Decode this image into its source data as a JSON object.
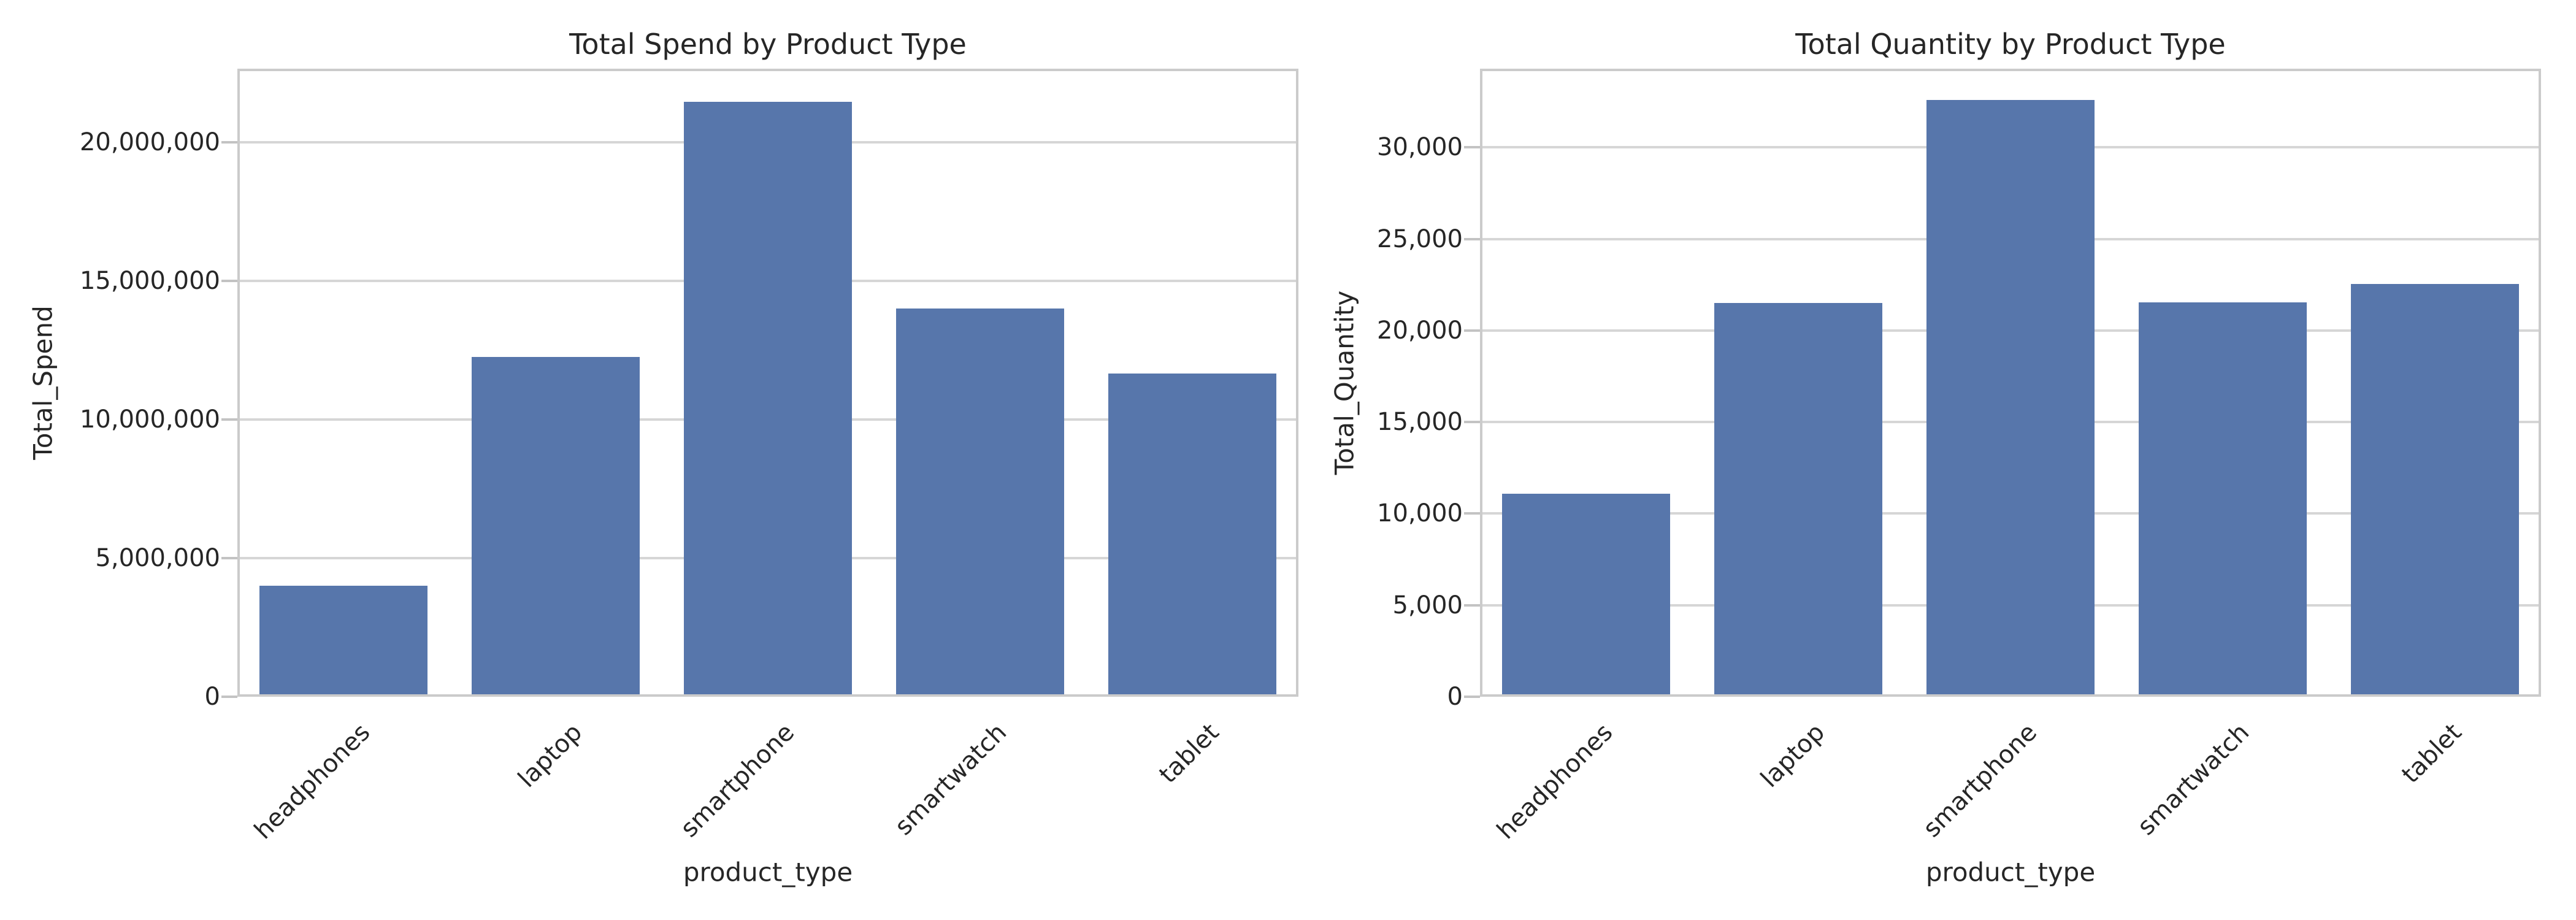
{
  "figure": {
    "background": "#ffffff"
  },
  "colors": {
    "bar": "#5776AB",
    "grid": "#d6d6d6",
    "spine": "#cbcbcb",
    "tick_mark": "#c3c3c3",
    "text": "#262626"
  },
  "chart_data": [
    {
      "type": "bar",
      "title": "Total Spend by Product Type",
      "xlabel": "product_type",
      "ylabel": "Total_Spend",
      "categories": [
        "headphones",
        "laptop",
        "smartphone",
        "smartwatch",
        "tablet"
      ],
      "values": [
        4000000,
        12250000,
        21450000,
        14000000,
        11650000
      ],
      "ylim": [
        0,
        22650000
      ],
      "yticks": [
        0,
        5000000,
        10000000,
        15000000,
        20000000
      ],
      "ytick_labels": [
        "0",
        "5,000,000",
        "10,000,000",
        "15,000,000",
        "20,000,000"
      ],
      "grid": true,
      "legend_position": "none"
    },
    {
      "type": "bar",
      "title": "Total Quantity by Product Type",
      "xlabel": "product_type",
      "ylabel": "Total_Quantity",
      "categories": [
        "headphones",
        "laptop",
        "smartphone",
        "smartwatch",
        "tablet"
      ],
      "values": [
        11100,
        21500,
        32600,
        21550,
        22550
      ],
      "ylim": [
        0,
        34300
      ],
      "yticks": [
        0,
        5000,
        10000,
        15000,
        20000,
        25000,
        30000
      ],
      "ytick_labels": [
        "0",
        "5,000",
        "10,000",
        "15,000",
        "20,000",
        "25,000",
        "30,000"
      ],
      "grid": true,
      "legend_position": "none"
    }
  ]
}
